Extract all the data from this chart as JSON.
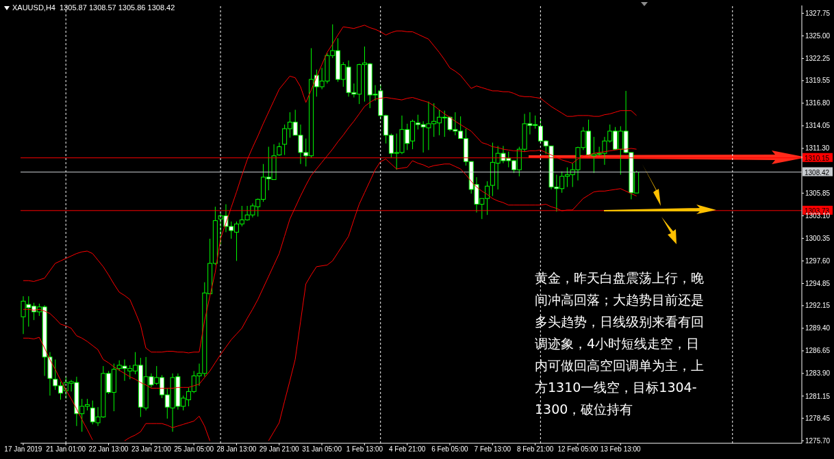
{
  "chart_data": {
    "type": "candlestick",
    "title": "XAUUSD,H4  1305.87 1308.57 1305.86 1308.42",
    "color": "#00ff00",
    "marker": "none",
    "grid": "x",
    "categories": [
      "17 Jan 2019",
      null,
      null,
      null,
      null,
      null,
      null,
      null,
      "21 Jan 01:00",
      null,
      null,
      null,
      null,
      null,
      null,
      null,
      "22 Jan 13:00",
      null,
      null,
      null,
      null,
      null,
      null,
      null,
      "23 Jan 21:00",
      null,
      null,
      null,
      null,
      null,
      null,
      null,
      "25 Jan 05:00",
      null,
      null,
      null,
      null,
      null,
      null,
      null,
      "28 Jan 13:00",
      null,
      null,
      null,
      null,
      null,
      null,
      null,
      "29 Jan 21:00",
      null,
      null,
      null,
      null,
      null,
      null,
      null,
      "31 Jan 05:00",
      null,
      null,
      null,
      null,
      null,
      null,
      null,
      "1 Feb 13:00",
      null,
      null,
      null,
      null,
      null,
      null,
      null,
      "4 Feb 21:00",
      null,
      null,
      null,
      null,
      null,
      null,
      null,
      "6 Feb 05:00",
      null,
      null,
      null,
      null,
      null,
      null,
      null,
      "7 Feb 13:00",
      null,
      null,
      null,
      null,
      null,
      null,
      null,
      "8 Feb 21:00",
      null,
      null,
      null,
      null,
      null,
      null,
      null,
      "12 Feb 05:00",
      null,
      null,
      null,
      null,
      null,
      null,
      null,
      "13 Feb 13:00",
      null,
      null,
      null
    ],
    "ohlc": [
      [
        1290.8,
        1293.3,
        1288.7,
        1292.7
      ],
      [
        1292.3,
        1293.3,
        1289.6,
        1291.9
      ],
      [
        1292.1,
        1292.5,
        1290.4,
        1291.4
      ],
      [
        1291.4,
        1292.4,
        1290.9,
        1292.0
      ],
      [
        1292.0,
        1292.2,
        1283.6,
        1285.9
      ],
      [
        1285.9,
        1286.5,
        1281.2,
        1283.3
      ],
      [
        1283.2,
        1285.6,
        1281.9,
        1282.4
      ],
      [
        1282.4,
        1282.9,
        1280.7,
        1281.5
      ],
      [
        1281.8,
        1283.5,
        1280.8,
        1282.8
      ],
      [
        1282.7,
        1283.1,
        1281.7,
        1282.9
      ],
      [
        1282.8,
        1283.5,
        1277.5,
        1279.0
      ],
      [
        1279.0,
        1280.8,
        1276.8,
        1279.9
      ],
      [
        1279.9,
        1280.8,
        1279.4,
        1280.1
      ],
      [
        1279.7,
        1280.6,
        1277.7,
        1278.0
      ],
      [
        1277.9,
        1279.8,
        1277.5,
        1278.6
      ],
      [
        1278.6,
        1284.8,
        1278.5,
        1283.9
      ],
      [
        1283.9,
        1284.2,
        1281.4,
        1281.6
      ],
      [
        1281.6,
        1285.1,
        1279.3,
        1284.4
      ],
      [
        1284.5,
        1285.5,
        1284.2,
        1284.9
      ],
      [
        1284.8,
        1285.6,
        1283.0,
        1284.5
      ],
      [
        1284.2,
        1284.9,
        1283.2,
        1284.5
      ],
      [
        1284.2,
        1286.5,
        1283.8,
        1284.9
      ],
      [
        1284.9,
        1285.8,
        1278.6,
        1279.8
      ],
      [
        1279.7,
        1285.9,
        1279.4,
        1283.5
      ],
      [
        1283.5,
        1283.9,
        1282.2,
        1282.5
      ],
      [
        1282.7,
        1284.8,
        1282.5,
        1283.4
      ],
      [
        1283.4,
        1283.7,
        1280.9,
        1281.3
      ],
      [
        1281.3,
        1282.1,
        1278.4,
        1279.8
      ],
      [
        1279.7,
        1283.9,
        1276.8,
        1283.4
      ],
      [
        1283.5,
        1283.9,
        1279.5,
        1279.9
      ],
      [
        1279.9,
        1281.2,
        1279.4,
        1280.9
      ],
      [
        1280.7,
        1282.2,
        1279.9,
        1281.7
      ],
      [
        1281.7,
        1284.2,
        1281.5,
        1283.6
      ],
      [
        1283.6,
        1285.1,
        1282.4,
        1283.9
      ],
      [
        1283.9,
        1295.0,
        1283.5,
        1293.7
      ],
      [
        1293.6,
        1300.3,
        1293.6,
        1297.3
      ],
      [
        1297.3,
        1304.2,
        1297.1,
        1302.5
      ],
      [
        1302.7,
        1303.4,
        1299.6,
        1303.1
      ],
      [
        1303.1,
        1304.5,
        1301.1,
        1301.8
      ],
      [
        1301.8,
        1302.4,
        1300.3,
        1301.3
      ],
      [
        1301.1,
        1302.4,
        1297.6,
        1302.1
      ],
      [
        1302.1,
        1304.3,
        1301.8,
        1302.6
      ],
      [
        1302.6,
        1304.3,
        1302.5,
        1303.2
      ],
      [
        1303.2,
        1304.6,
        1302.9,
        1304.3
      ],
      [
        1304.2,
        1305.2,
        1303.0,
        1305.1
      ],
      [
        1305.1,
        1309.4,
        1304.8,
        1307.8
      ],
      [
        1307.8,
        1311.5,
        1306.2,
        1307.6
      ],
      [
        1307.5,
        1311.8,
        1307.5,
        1310.4
      ],
      [
        1310.5,
        1312.0,
        1310.4,
        1311.5
      ],
      [
        1311.8,
        1314.2,
        1310.5,
        1313.7
      ],
      [
        1313.7,
        1315.7,
        1312.6,
        1314.5
      ],
      [
        1314.5,
        1316.0,
        1312.9,
        1312.9
      ],
      [
        1312.9,
        1314.2,
        1309.4,
        1310.8
      ],
      [
        1310.8,
        1312.5,
        1309.1,
        1310.4
      ],
      [
        1310.4,
        1323.5,
        1310.2,
        1319.7
      ],
      [
        1320.2,
        1320.9,
        1317.6,
        1318.8
      ],
      [
        1318.8,
        1321.1,
        1318.5,
        1319.5
      ],
      [
        1319.5,
        1322.9,
        1319.2,
        1322.6
      ],
      [
        1322.6,
        1326.4,
        1322.3,
        1323.2
      ],
      [
        1323.2,
        1324.7,
        1319.4,
        1319.7
      ],
      [
        1319.7,
        1321.8,
        1318.8,
        1321.5
      ],
      [
        1321.2,
        1322.0,
        1317.6,
        1318.1
      ],
      [
        1318.1,
        1319.2,
        1317.5,
        1317.9
      ],
      [
        1317.9,
        1321.6,
        1316.7,
        1321.5
      ],
      [
        1321.5,
        1323.7,
        1317.0,
        1321.7
      ],
      [
        1321.6,
        1321.7,
        1316.2,
        1317.8
      ],
      [
        1317.9,
        1319.0,
        1317.1,
        1317.8
      ],
      [
        1318.3,
        1319.1,
        1314.8,
        1315.3
      ],
      [
        1315.3,
        1315.4,
        1311.9,
        1312.9
      ],
      [
        1312.9,
        1313.1,
        1310.2,
        1310.7
      ],
      [
        1310.7,
        1313.1,
        1308.7,
        1310.8
      ],
      [
        1310.8,
        1315.3,
        1310.6,
        1313.6
      ],
      [
        1313.6,
        1314.3,
        1311.1,
        1311.9
      ],
      [
        1312.2,
        1314.8,
        1311.2,
        1314.6
      ],
      [
        1314.4,
        1315.4,
        1313.6,
        1314.2
      ],
      [
        1314.2,
        1314.6,
        1310.8,
        1313.9
      ],
      [
        1313.8,
        1317.0,
        1311.1,
        1314.3
      ],
      [
        1314.3,
        1316.8,
        1312.7,
        1314.6
      ],
      [
        1314.4,
        1316.0,
        1312.9,
        1315.1
      ],
      [
        1315.1,
        1315.9,
        1312.7,
        1315.0
      ],
      [
        1315.1,
        1315.2,
        1313.4,
        1313.6
      ],
      [
        1313.6,
        1315.7,
        1312.9,
        1313.4
      ],
      [
        1313.4,
        1315.2,
        1312.5,
        1312.5
      ],
      [
        1312.5,
        1313.7,
        1309.2,
        1309.7
      ],
      [
        1309.7,
        1309.7,
        1305.8,
        1306.3
      ],
      [
        1306.9,
        1307.8,
        1303.5,
        1304.5
      ],
      [
        1304.5,
        1305.2,
        1302.7,
        1305.2
      ],
      [
        1305.2,
        1307.3,
        1303.2,
        1306.7
      ],
      [
        1306.8,
        1312.0,
        1305.5,
        1309.6
      ],
      [
        1309.5,
        1311.6,
        1306.3,
        1310.7
      ],
      [
        1310.7,
        1311.6,
        1309.5,
        1309.8
      ],
      [
        1310.1,
        1310.9,
        1309.0,
        1309.8
      ],
      [
        1309.8,
        1309.9,
        1308.3,
        1308.7
      ],
      [
        1308.7,
        1311.5,
        1307.9,
        1311.2
      ],
      [
        1311.2,
        1315.5,
        1310.9,
        1314.3
      ],
      [
        1314.3,
        1315.7,
        1313.0,
        1314.1
      ],
      [
        1314.2,
        1315.3,
        1313.7,
        1314.1
      ],
      [
        1314.0,
        1315.0,
        1312.0,
        1312.2
      ],
      [
        1312.2,
        1312.3,
        1310.6,
        1311.6
      ],
      [
        1311.6,
        1311.6,
        1306.3,
        1306.6
      ],
      [
        1306.6,
        1308.1,
        1303.6,
        1306.4
      ],
      [
        1306.4,
        1308.5,
        1305.9,
        1307.9
      ],
      [
        1307.9,
        1309.0,
        1306.6,
        1308.1
      ],
      [
        1308.1,
        1309.5,
        1306.6,
        1308.7
      ],
      [
        1308.7,
        1311.5,
        1307.4,
        1311.4
      ],
      [
        1311.4,
        1313.9,
        1311.1,
        1313.4
      ],
      [
        1313.4,
        1314.8,
        1310.4,
        1310.5
      ],
      [
        1310.4,
        1312.7,
        1308.3,
        1310.6
      ],
      [
        1310.6,
        1311.5,
        1310.4,
        1310.7
      ],
      [
        1310.7,
        1312.7,
        1309.3,
        1312.2
      ],
      [
        1312.2,
        1314.2,
        1312.0,
        1313.4
      ],
      [
        1313.4,
        1313.9,
        1311.1,
        1311.2
      ],
      [
        1311.2,
        1314.0,
        1308.1,
        1313.4
      ],
      [
        1313.4,
        1318.3,
        1310.7,
        1310.8
      ],
      [
        1310.8,
        1310.8,
        1305.1,
        1305.9
      ],
      [
        1305.87,
        1308.57,
        1305.86,
        1308.42
      ]
    ],
    "series": [
      {
        "type": "line",
        "color": "#ff0000",
        "line_style": "solid",
        "values": [
          1295.2,
          1295.2,
          1295.1,
          1295.3,
          1295.5,
          1296.4,
          1297.3,
          1297.6,
          1297.9,
          1298.2,
          1298.5,
          1298.7,
          1298.8,
          1298.5,
          1297.7,
          1296.9,
          1295.9,
          1294.8,
          1293.8,
          1293.4,
          1292.9,
          1291.4,
          1289.8,
          1287.0,
          1286.5,
          1286.5,
          1286.5,
          1286.6,
          1286.6,
          1286.5,
          1286.5,
          1286.4,
          1286.5,
          1286.5,
          1290.3,
          1293.3,
          1296.2,
          1300.3,
          1302.2,
          1304.1,
          1306.0,
          1308.0,
          1309.9,
          1311.4,
          1312.8,
          1314.3,
          1315.7,
          1317.1,
          1318.5,
          1319.3,
          1320.1,
          1319.9,
          1318.8,
          1316.9,
          1318.4,
          1320.0,
          1321.5,
          1323.0,
          1324.0,
          1325.1,
          1326.1,
          1326.0,
          1325.9,
          1326.1,
          1326.3,
          1326.0,
          1325.8,
          1325.5,
          1325.1,
          1325.4,
          1325.6,
          1325.6,
          1325.5,
          1325.5,
          1325.2,
          1324.9,
          1324.6,
          1323.8,
          1323.0,
          1322.1,
          1321.1,
          1320.7,
          1320.2,
          1319.4,
          1318.6,
          1318.9,
          1318.7,
          1318.5,
          1318.3,
          1318.3,
          1318.2,
          1318.2,
          1318.0,
          1317.7,
          1317.6,
          1317.6,
          1317.5,
          1317.4,
          1316.9,
          1316.4,
          1316.0,
          1315.6,
          1315.2,
          1315.2,
          1315.3,
          1315.3,
          1315.3,
          1315.2,
          1315.2,
          1315.4,
          1315.5,
          1315.7,
          1315.9,
          1315.9,
          1315.9,
          1315.3
        ]
      },
      {
        "type": "line",
        "color": "#ff0000",
        "line_style": "solid",
        "values": [
          1291.7,
          1291.7,
          1291.6,
          1291.7,
          1291.5,
          1291.2,
          1290.6,
          1289.9,
          1289.7,
          1289.4,
          1288.5,
          1288.2,
          1287.8,
          1287.3,
          1286.8,
          1285.6,
          1285.2,
          1284.7,
          1284.3,
          1283.9,
          1283.5,
          1283.2,
          1282.8,
          1282.5,
          1282.1,
          1282.1,
          1282.1,
          1282.1,
          1282.1,
          1282.2,
          1282.2,
          1282.2,
          1282.4,
          1282.6,
          1283.4,
          1284.2,
          1285.2,
          1286.2,
          1287.1,
          1288.0,
          1288.7,
          1289.4,
          1290.6,
          1291.7,
          1292.9,
          1294.3,
          1295.7,
          1297.1,
          1298.5,
          1300.6,
          1302.7,
          1304.1,
          1305.5,
          1306.8,
          1308.0,
          1308.8,
          1309.6,
          1310.4,
          1311.2,
          1312.1,
          1312.9,
          1313.8,
          1314.6,
          1315.5,
          1316.4,
          1316.9,
          1317.3,
          1317.4,
          1317.5,
          1317.4,
          1317.3,
          1317.2,
          1317.4,
          1317.5,
          1317.3,
          1317.1,
          1316.9,
          1316.5,
          1316.0,
          1315.5,
          1315.1,
          1314.6,
          1314.2,
          1313.8,
          1313.4,
          1312.7,
          1312.0,
          1311.8,
          1311.5,
          1311.4,
          1311.2,
          1311.1,
          1311.0,
          1311.0,
          1310.9,
          1311.0,
          1311.0,
          1311.1,
          1310.8,
          1310.5,
          1310.2,
          1309.9,
          1309.7,
          1309.5,
          1310.0,
          1310.4,
          1310.5,
          1310.7,
          1310.8,
          1310.9,
          1311.0,
          1311.1,
          1311.2,
          1311.2,
          1311.3,
          1311.2
        ]
      },
      {
        "type": "line",
        "color": "#ff0000",
        "line_style": "solid",
        "values": [
          1288.2,
          1288.2,
          1288.1,
          1288.3,
          1287.0,
          1285.6,
          1284.4,
          1283.1,
          1281.9,
          1280.8,
          1279.6,
          1278.3,
          1277.1,
          1275.8,
          null,
          null,
          null,
          null,
          null,
          1275.7,
          1276.1,
          1276.4,
          1276.8,
          1277.8,
          1277.8,
          1277.8,
          1277.8,
          1277.6,
          1277.3,
          1277.5,
          1277.7,
          1277.9,
          1278.1,
          1278.7,
          1277.5,
          1275.7,
          null,
          null,
          null,
          null,
          null,
          null,
          null,
          null,
          null,
          null,
          1275.7,
          1276.8,
          1277.9,
          1280.5,
          1283.0,
          1285.6,
          1290.2,
          1294.8,
          1295.9,
          1296.9,
          1297.0,
          1297.1,
          1297.6,
          1298.6,
          1299.6,
          1300.6,
          1302.6,
          1304.5,
          1305.9,
          1307.3,
          1308.7,
          1309.7,
          1310.0,
          1309.4,
          1308.8,
          1308.9,
          1309.0,
          1309.8,
          1309.5,
          1309.3,
          1309.0,
          1309.2,
          1309.3,
          1309.4,
          1309.4,
          1309.1,
          1308.8,
          1308.1,
          1307.3,
          1306.6,
          1306.1,
          1305.7,
          1305.2,
          1304.9,
          1304.7,
          1304.4,
          1304.4,
          1304.4,
          1304.4,
          1304.4,
          1304.4,
          1304.4,
          1304.5,
          1304.2,
          1304.0,
          1303.7,
          1303.8,
          1303.8,
          1304.5,
          1305.2,
          1305.6,
          1306.0,
          1306.1,
          1306.1,
          1306.2,
          1306.3,
          1306.4,
          1306.1,
          1305.8,
          1305.5
        ]
      }
    ],
    "ylim": [
      1275.4,
      1328.7
    ],
    "yticks": [
      {
        "value": 1275.7,
        "label": "1275.70"
      },
      1278.45,
      1281.15,
      {
        "value": 1283.9,
        "label": "1283.90"
      },
      1286.65,
      {
        "value": 1289.4,
        "label": "1289.40"
      },
      1292.15,
      1294.85,
      {
        "value": 1297.6,
        "label": "1297.60"
      },
      1300.35,
      {
        "value": 1303.1,
        "label": "1303.10"
      },
      1305.85,
      {
        "value": 1311.3,
        "label": "1311.30"
      },
      1314.05,
      {
        "value": 1316.8,
        "label": "1316.80"
      },
      1319.55,
      1322.25,
      {
        "value": 1325,
        "label": "1325.00"
      },
      1327.75
    ],
    "ref_lines": [
      {
        "axis": "y",
        "value": 1310.15,
        "label": "1310.15",
        "color": "#ff0000",
        "line_style": "solid"
      },
      {
        "axis": "y",
        "value": 1308.42,
        "label": "1308.42",
        "color": "#c8ccd0",
        "line_style": "solid"
      },
      {
        "axis": "y",
        "value": 1303.73,
        "label": "1303.73",
        "color": "#ff0000",
        "line_style": "solid"
      }
    ],
    "annotations": [
      "黄金，昨天白盘震荡上行，晚间冲高回落；大趋势目前还是多头趋势，日线级别来看有回调迹象，4小时短线走空，日内可做回高空回调单为主，上方1310一线空，目标1304-1300，破位持有"
    ]
  }
}
